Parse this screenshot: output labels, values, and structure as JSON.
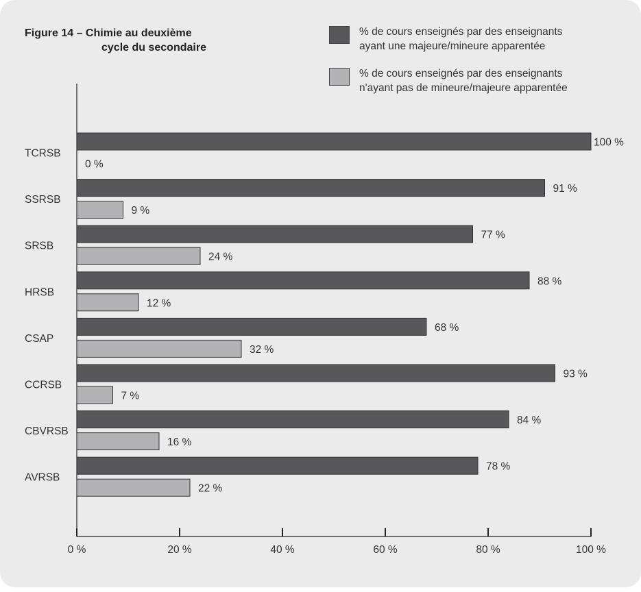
{
  "chart_data": {
    "type": "bar",
    "orientation": "horizontal",
    "title_line1": "Figure 14 – Chimie au deuxième",
    "title_line2": "cycle du secondaire",
    "categories": [
      "TCRSB",
      "SSRSB",
      "SRSB",
      "HRSB",
      "CSAP",
      "CCRSB",
      "CBVRSB",
      "AVRSB"
    ],
    "series": [
      {
        "name_line1": "% de cours enseignés par des enseignants",
        "name_line2": "ayant une majeure/mineure apparentée",
        "color": "#58585a",
        "values": [
          100,
          91,
          77,
          88,
          68,
          93,
          84,
          78
        ],
        "labels": [
          "100 %",
          "91 %",
          "77 %",
          "88 %",
          "68 %",
          "93 %",
          "84 %",
          "78 %"
        ]
      },
      {
        "name_line1": "% de cours enseignés par des enseignants",
        "name_line2": "n'ayant pas de mineure/majeure apparentée",
        "color": "#b3b3b5",
        "values": [
          0,
          9,
          24,
          12,
          32,
          7,
          16,
          22
        ],
        "labels": [
          "0 %",
          "9 %",
          "24 %",
          "12 %",
          "32 %",
          "7 %",
          "16 %",
          "22 %"
        ]
      }
    ],
    "xlim": [
      0,
      100
    ],
    "x_ticks": [
      0,
      20,
      40,
      60,
      80,
      100
    ],
    "x_tick_labels": [
      "0 %",
      "20 %",
      "40 %",
      "60 %",
      "80 %",
      "100 %"
    ],
    "grid": false,
    "legend_position": "top-right"
  }
}
